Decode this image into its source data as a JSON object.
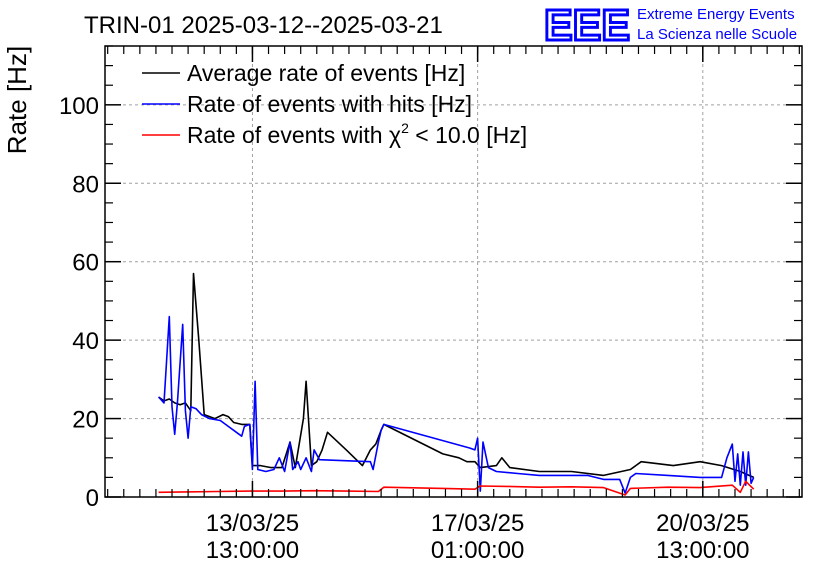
{
  "chart_data": {
    "type": "line",
    "title": "TRIN-01 2025-03-12--2025-03-21",
    "ylabel": "Rate [Hz]",
    "xlabel": "",
    "ylim": [
      0,
      115
    ],
    "yticks": [
      0,
      20,
      40,
      60,
      80,
      100
    ],
    "xlim": [
      "2025-03-11 06:00",
      "2025-03-22 02:00"
    ],
    "xticks": [
      {
        "at": "2025-03-13 13:00",
        "date": "13/03/25",
        "time": "13:00:00"
      },
      {
        "at": "2025-03-17 01:00",
        "date": "17/03/25",
        "time": "01:00:00"
      },
      {
        "at": "2025-03-20 13:00",
        "date": "20/03/25",
        "time": "13:00:00"
      }
    ],
    "grid": true,
    "legend_placement": "top-left",
    "logo": {
      "mark": "EEE",
      "line1": "Extreme Energy Events",
      "line2": "La Scienza nelle Scuole",
      "color": "#0000ff"
    },
    "series": [
      {
        "name": "Average rate of events [Hz]",
        "label_main": "Average rate of events [Hz]",
        "color": "#000000",
        "points": [
          [
            "2025-03-12 02:00",
            25.5
          ],
          [
            "2025-03-12 04:00",
            24.5
          ],
          [
            "2025-03-12 06:00",
            25
          ],
          [
            "2025-03-12 08:00",
            24
          ],
          [
            "2025-03-12 10:00",
            23.5
          ],
          [
            "2025-03-12 12:00",
            24
          ],
          [
            "2025-03-12 14:00",
            22
          ],
          [
            "2025-03-12 15:00",
            57
          ],
          [
            "2025-03-12 17:00",
            40
          ],
          [
            "2025-03-12 19:00",
            21
          ],
          [
            "2025-03-12 23:00",
            20
          ],
          [
            "2025-03-13 02:00",
            21
          ],
          [
            "2025-03-13 04:00",
            20.5
          ],
          [
            "2025-03-13 06:00",
            19
          ],
          [
            "2025-03-13 09:00",
            18.5
          ],
          [
            "2025-03-13 12:00",
            18.5
          ],
          [
            "2025-03-13 13:00",
            8
          ],
          [
            "2025-03-13 16:00",
            8
          ],
          [
            "2025-03-13 20:00",
            7.5
          ],
          [
            "2025-03-14 00:00",
            7.5
          ],
          [
            "2025-03-14 03:00",
            14
          ],
          [
            "2025-03-14 05:00",
            7.5
          ],
          [
            "2025-03-14 08:00",
            20
          ],
          [
            "2025-03-14 09:00",
            29.5
          ],
          [
            "2025-03-14 11:00",
            8
          ],
          [
            "2025-03-14 13:00",
            9
          ],
          [
            "2025-03-14 15:00",
            12
          ],
          [
            "2025-03-14 17:00",
            16.5
          ],
          [
            "2025-03-15 00:00",
            12
          ],
          [
            "2025-03-15 06:00",
            8
          ],
          [
            "2025-03-15 09:00",
            12
          ],
          [
            "2025-03-15 11:00",
            13.5
          ],
          [
            "2025-03-15 13:00",
            17
          ],
          [
            "2025-03-15 14:00",
            18.5
          ],
          [
            "2025-03-16 12:00",
            11
          ],
          [
            "2025-03-16 18:00",
            10
          ],
          [
            "2025-03-16 21:00",
            9
          ],
          [
            "2025-03-17 00:00",
            9
          ],
          [
            "2025-03-17 02:00",
            7.5
          ],
          [
            "2025-03-17 08:00",
            8
          ],
          [
            "2025-03-17 10:00",
            10
          ],
          [
            "2025-03-17 13:00",
            7.5
          ],
          [
            "2025-03-18 00:00",
            6.5
          ],
          [
            "2025-03-18 12:00",
            6.5
          ],
          [
            "2025-03-19 00:00",
            5.5
          ],
          [
            "2025-03-19 10:00",
            7
          ],
          [
            "2025-03-19 14:00",
            9
          ],
          [
            "2025-03-20 02:00",
            8
          ],
          [
            "2025-03-20 12:00",
            9
          ],
          [
            "2025-03-20 20:00",
            8
          ],
          [
            "2025-03-21 03:00",
            6.5
          ],
          [
            "2025-03-21 08:00",
            5
          ]
        ]
      },
      {
        "name": "Rate of events with hits [Hz]",
        "label_main": "Rate of events with hits [Hz]",
        "color": "#0000ff",
        "points": [
          [
            "2025-03-12 02:00",
            25.5
          ],
          [
            "2025-03-12 04:00",
            24
          ],
          [
            "2025-03-12 06:00",
            46
          ],
          [
            "2025-03-12 07:00",
            23
          ],
          [
            "2025-03-12 08:00",
            16
          ],
          [
            "2025-03-12 09:00",
            24
          ],
          [
            "2025-03-12 11:00",
            44
          ],
          [
            "2025-03-12 12:00",
            22
          ],
          [
            "2025-03-12 13:00",
            15
          ],
          [
            "2025-03-12 14:00",
            23
          ],
          [
            "2025-03-12 16:00",
            22.5
          ],
          [
            "2025-03-12 18:00",
            21
          ],
          [
            "2025-03-12 21:00",
            20
          ],
          [
            "2025-03-13 01:00",
            19.5
          ],
          [
            "2025-03-13 04:00",
            18
          ],
          [
            "2025-03-13 07:00",
            16.5
          ],
          [
            "2025-03-13 09:00",
            15.5
          ],
          [
            "2025-03-13 10:00",
            18
          ],
          [
            "2025-03-13 12:00",
            18.5
          ],
          [
            "2025-03-13 13:00",
            7
          ],
          [
            "2025-03-13 14:00",
            29.5
          ],
          [
            "2025-03-13 15:00",
            7
          ],
          [
            "2025-03-13 18:00",
            6.5
          ],
          [
            "2025-03-13 21:00",
            7
          ],
          [
            "2025-03-13 23:00",
            10
          ],
          [
            "2025-03-14 01:00",
            6.5
          ],
          [
            "2025-03-14 03:00",
            14
          ],
          [
            "2025-03-14 04:00",
            7
          ],
          [
            "2025-03-14 06:00",
            9
          ],
          [
            "2025-03-14 07:00",
            7
          ],
          [
            "2025-03-14 09:00",
            10
          ],
          [
            "2025-03-14 11:00",
            6.5
          ],
          [
            "2025-03-14 12:00",
            12
          ],
          [
            "2025-03-14 14:00",
            9.5
          ],
          [
            "2025-03-15 09:00",
            9
          ],
          [
            "2025-03-15 10:00",
            7
          ],
          [
            "2025-03-15 12:00",
            14
          ],
          [
            "2025-03-15 13:00",
            17
          ],
          [
            "2025-03-15 14:00",
            18.5
          ],
          [
            "2025-03-16 22:00",
            12.5
          ],
          [
            "2025-03-17 00:00",
            12
          ],
          [
            "2025-03-17 01:00",
            15
          ],
          [
            "2025-03-17 02:00",
            1.5
          ],
          [
            "2025-03-17 03:00",
            14
          ],
          [
            "2025-03-17 05:00",
            7.5
          ],
          [
            "2025-03-17 08:00",
            6.5
          ],
          [
            "2025-03-17 16:00",
            6
          ],
          [
            "2025-03-18 00:00",
            5.5
          ],
          [
            "2025-03-18 12:00",
            5.5
          ],
          [
            "2025-03-18 18:00",
            5.5
          ],
          [
            "2025-03-19 00:00",
            4.5
          ],
          [
            "2025-03-19 06:00",
            4.5
          ],
          [
            "2025-03-19 08:00",
            1
          ],
          [
            "2025-03-19 10:00",
            5
          ],
          [
            "2025-03-19 12:00",
            6
          ],
          [
            "2025-03-20 00:00",
            5.5
          ],
          [
            "2025-03-20 12:00",
            5
          ],
          [
            "2025-03-20 20:00",
            5
          ],
          [
            "2025-03-20 22:00",
            10
          ],
          [
            "2025-03-21 00:00",
            13.5
          ],
          [
            "2025-03-21 01:00",
            4
          ],
          [
            "2025-03-21 02:00",
            11
          ],
          [
            "2025-03-21 03:00",
            3
          ],
          [
            "2025-03-21 04:00",
            11.5
          ],
          [
            "2025-03-21 05:00",
            3
          ],
          [
            "2025-03-21 06:00",
            11.5
          ],
          [
            "2025-03-21 07:00",
            3.5
          ],
          [
            "2025-03-21 08:00",
            5
          ]
        ]
      },
      {
        "name": "Rate of events with χ2 < 10.0 [Hz]",
        "label_main": "Rate of events with χ",
        "label_sup": "2",
        "label_rest": " < 10.0 [Hz]",
        "color": "#ff0000",
        "points": [
          [
            "2025-03-12 02:00",
            1.2
          ],
          [
            "2025-03-12 12:00",
            1.3
          ],
          [
            "2025-03-13 00:00",
            1.4
          ],
          [
            "2025-03-13 12:00",
            1.5
          ],
          [
            "2025-03-14 00:00",
            1.5
          ],
          [
            "2025-03-14 12:00",
            1.6
          ],
          [
            "2025-03-15 00:00",
            1.5
          ],
          [
            "2025-03-15 12:00",
            1.4
          ],
          [
            "2025-03-15 14:00",
            2.5
          ],
          [
            "2025-03-16 12:00",
            2.2
          ],
          [
            "2025-03-17 00:00",
            2.0
          ],
          [
            "2025-03-17 02:00",
            2.8
          ],
          [
            "2025-03-17 12:00",
            2.7
          ],
          [
            "2025-03-18 00:00",
            2.5
          ],
          [
            "2025-03-18 12:00",
            2.6
          ],
          [
            "2025-03-19 00:00",
            2.4
          ],
          [
            "2025-03-19 08:00",
            0.5
          ],
          [
            "2025-03-19 10:00",
            2.2
          ],
          [
            "2025-03-20 00:00",
            2.5
          ],
          [
            "2025-03-20 12:00",
            2.4
          ],
          [
            "2025-03-21 00:00",
            3.0
          ],
          [
            "2025-03-21 03:00",
            1.2
          ],
          [
            "2025-03-21 05:00",
            4.0
          ],
          [
            "2025-03-21 08:00",
            2.0
          ]
        ]
      }
    ]
  }
}
